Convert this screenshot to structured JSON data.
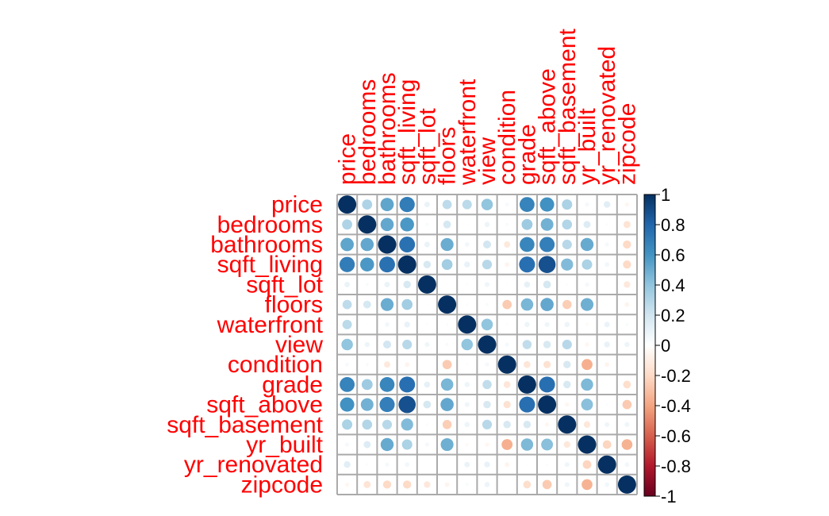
{
  "chart_data": {
    "type": "heatmap",
    "subtype": "correlation-circles",
    "variables": [
      "price",
      "bedrooms",
      "bathrooms",
      "sqft_living",
      "sqft_lot",
      "floors",
      "waterfront",
      "view",
      "condition",
      "grade",
      "sqft_above",
      "sqft_basement",
      "yr_built",
      "yr_renovated",
      "zipcode"
    ],
    "matrix": [
      [
        1.0,
        0.31,
        0.53,
        0.7,
        0.09,
        0.26,
        0.27,
        0.4,
        0.04,
        0.67,
        0.61,
        0.32,
        0.05,
        0.13,
        -0.05
      ],
      [
        0.31,
        1.0,
        0.52,
        0.58,
        0.03,
        0.18,
        -0.01,
        0.08,
        0.03,
        0.36,
        0.48,
        0.3,
        0.15,
        0.02,
        -0.15
      ],
      [
        0.53,
        0.52,
        1.0,
        0.75,
        0.09,
        0.5,
        0.06,
        0.19,
        -0.12,
        0.66,
        0.69,
        0.28,
        0.51,
        0.05,
        -0.2
      ],
      [
        0.7,
        0.58,
        0.75,
        1.0,
        0.17,
        0.35,
        0.1,
        0.28,
        -0.06,
        0.76,
        0.88,
        0.44,
        0.32,
        0.06,
        -0.2
      ],
      [
        0.09,
        0.03,
        0.09,
        0.17,
        1.0,
        -0.01,
        0.02,
        0.07,
        -0.01,
        0.11,
        0.18,
        0.02,
        0.05,
        0.01,
        -0.13
      ],
      [
        0.26,
        0.18,
        0.5,
        0.35,
        -0.01,
        1.0,
        0.02,
        0.03,
        -0.26,
        0.46,
        0.52,
        -0.25,
        0.49,
        0.01,
        -0.06
      ],
      [
        0.27,
        -0.01,
        0.06,
        0.1,
        0.02,
        0.02,
        1.0,
        0.4,
        0.02,
        0.08,
        0.07,
        0.08,
        -0.03,
        0.09,
        0.03
      ],
      [
        0.4,
        0.08,
        0.19,
        0.28,
        0.07,
        0.03,
        0.4,
        1.0,
        0.05,
        0.25,
        0.17,
        0.28,
        -0.05,
        0.1,
        0.08
      ],
      [
        0.04,
        0.03,
        -0.12,
        -0.06,
        -0.01,
        -0.26,
        0.02,
        0.05,
        1.0,
        -0.14,
        -0.16,
        0.17,
        -0.36,
        -0.06,
        0.0
      ],
      [
        0.67,
        0.36,
        0.66,
        0.76,
        0.11,
        0.46,
        0.08,
        0.25,
        -0.14,
        1.0,
        0.76,
        0.17,
        0.45,
        0.01,
        -0.18
      ],
      [
        0.61,
        0.48,
        0.69,
        0.88,
        0.18,
        0.52,
        0.07,
        0.17,
        -0.16,
        0.76,
        1.0,
        -0.05,
        0.42,
        0.02,
        -0.26
      ],
      [
        0.32,
        0.3,
        0.28,
        0.44,
        0.02,
        -0.25,
        0.08,
        0.28,
        0.17,
        0.17,
        -0.05,
        1.0,
        -0.13,
        0.07,
        0.07
      ],
      [
        0.05,
        0.15,
        0.51,
        0.32,
        0.05,
        0.49,
        -0.03,
        -0.05,
        -0.36,
        0.45,
        0.42,
        -0.13,
        1.0,
        -0.22,
        -0.35
      ],
      [
        0.13,
        0.02,
        0.05,
        0.06,
        0.01,
        0.01,
        0.09,
        0.1,
        -0.06,
        0.01,
        0.02,
        0.07,
        -0.22,
        1.0,
        0.06
      ],
      [
        -0.05,
        -0.15,
        -0.2,
        -0.2,
        -0.13,
        -0.06,
        0.03,
        0.08,
        0.0,
        -0.18,
        -0.26,
        0.07,
        -0.35,
        0.06,
        1.0
      ]
    ],
    "colorbar": {
      "range": [
        -1,
        1
      ],
      "ticks": [
        "1",
        "0.8",
        "0.6",
        "0.4",
        "0.2",
        "0",
        "-0.2",
        "-0.4",
        "-0.6",
        "-0.8",
        "-1"
      ],
      "low_color": "#67001F",
      "mid_color": "#FFFFFF",
      "high_color": "#053061"
    },
    "label_color": "#FF0000",
    "grid_color": "#AAAAAA"
  }
}
